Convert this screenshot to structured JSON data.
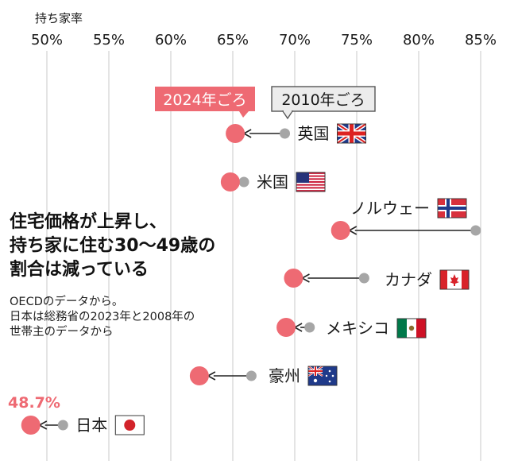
{
  "chart_data": {
    "type": "dot-arrow",
    "ylabel_top": "持ち家率",
    "x_ticks": [
      "50%",
      "55%",
      "60%",
      "65%",
      "70%",
      "75%",
      "80%",
      "85%"
    ],
    "xlim": [
      50,
      85
    ],
    "legend": {
      "current": "2024年ごろ",
      "past": "2010年ごろ"
    },
    "colors": {
      "current": "#ee6a73",
      "past": "#a6a6a6",
      "grid": "#c8c8c8"
    },
    "rows": [
      {
        "country": "英国",
        "flag": "uk-flag",
        "v2024": 65.2,
        "v2010": 69.2
      },
      {
        "country": "米国",
        "flag": "us-flag",
        "v2024": 64.8,
        "v2010": 65.9
      },
      {
        "country": "ノルウェー",
        "flag": "norway-flag",
        "v2024": 73.7,
        "v2010": 84.6
      },
      {
        "country": "カナダ",
        "flag": "canada-flag",
        "v2024": 69.9,
        "v2010": 75.6
      },
      {
        "country": "メキシコ",
        "flag": "mexico-flag",
        "v2024": 69.3,
        "v2010": 71.2
      },
      {
        "country": "豪州",
        "flag": "australia-flag",
        "v2024": 62.3,
        "v2010": 66.5
      },
      {
        "country": "日本",
        "flag": "japan-flag",
        "v2024": 48.7,
        "v2010": 51.3
      }
    ],
    "highlight_label": "48.7%"
  },
  "headline": [
    "住宅価格が上昇し、",
    "持ち家に住む30〜49歳の",
    "割合は減っている"
  ],
  "note": [
    "OECDのデータから。",
    "日本は総務省の2023年と2008年の",
    "世帯主のデータから"
  ]
}
